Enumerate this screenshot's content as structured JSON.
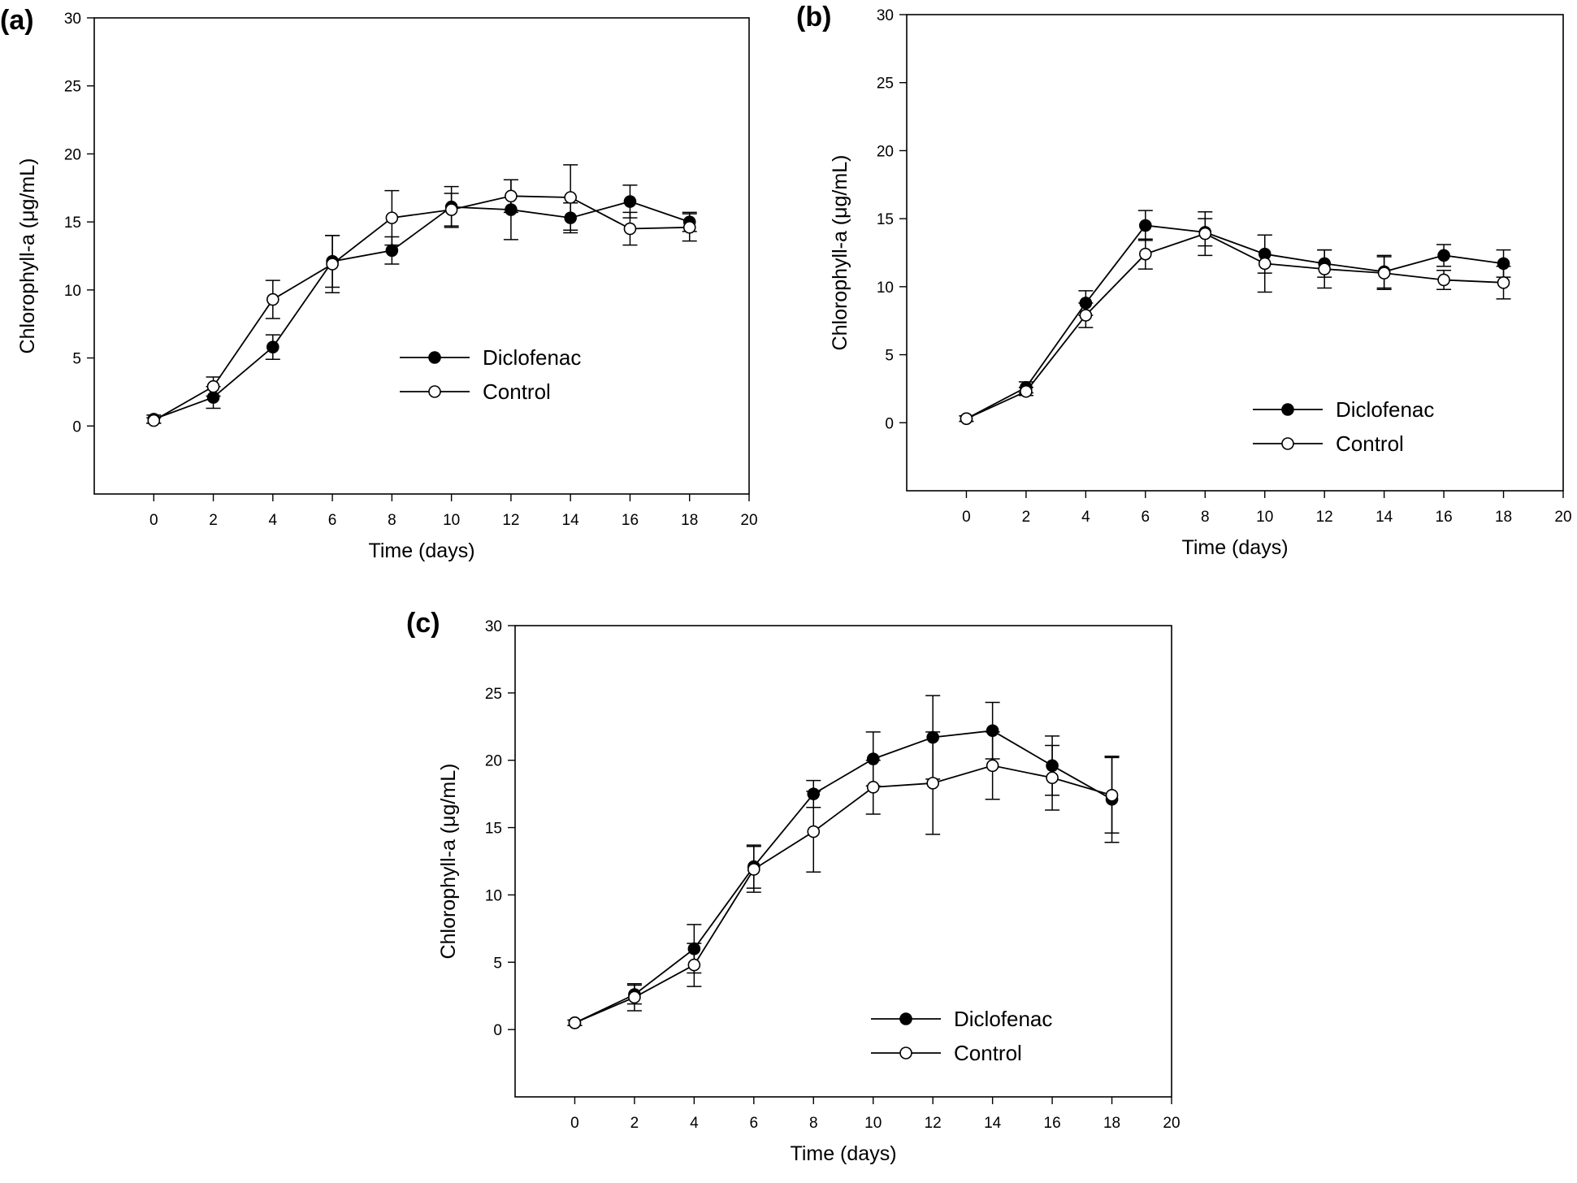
{
  "chart_data": [
    {
      "panel_label": "(a)",
      "type": "line",
      "xlabel": "Time (days)",
      "ylabel": "Chlorophyll-a (μg/mL)",
      "xlim": [
        -2,
        20
      ],
      "ylim": [
        -5,
        30
      ],
      "xticks": [
        0,
        2,
        4,
        6,
        8,
        10,
        12,
        14,
        16,
        18,
        20
      ],
      "yticks": [
        0,
        5,
        10,
        15,
        20,
        25,
        30
      ],
      "x": [
        0,
        2,
        4,
        6,
        8,
        10,
        12,
        14,
        16,
        18
      ],
      "legend_position": "center-right",
      "series": [
        {
          "name": "Diclofenac",
          "marker": "filled",
          "values": [
            0.5,
            2.1,
            5.8,
            12.1,
            12.9,
            16.1,
            15.9,
            15.3,
            16.5,
            15.0
          ],
          "errors": [
            0.3,
            0.8,
            0.9,
            1.9,
            1.0,
            1.5,
            2.2,
            1.1,
            1.2,
            0.7
          ]
        },
        {
          "name": "Control",
          "marker": "open",
          "values": [
            0.4,
            2.9,
            9.3,
            11.9,
            15.3,
            15.9,
            16.9,
            16.8,
            14.5,
            14.6
          ],
          "errors": [
            0.2,
            0.7,
            1.4,
            2.1,
            2.0,
            1.2,
            1.2,
            2.4,
            1.2,
            1.0
          ]
        }
      ]
    },
    {
      "panel_label": "(b)",
      "type": "line",
      "xlabel": "Time (days)",
      "ylabel": "Chlorophyll-a (μg/mL)",
      "xlim": [
        -2,
        20
      ],
      "ylim": [
        -5,
        30
      ],
      "xticks": [
        0,
        2,
        4,
        6,
        8,
        10,
        12,
        14,
        16,
        18,
        20
      ],
      "yticks": [
        0,
        5,
        10,
        15,
        20,
        25,
        30
      ],
      "x": [
        0,
        2,
        4,
        6,
        8,
        10,
        12,
        14,
        16,
        18
      ],
      "legend_position": "lower-right",
      "series": [
        {
          "name": "Diclofenac",
          "marker": "filled",
          "values": [
            0.3,
            2.6,
            8.8,
            14.5,
            14.0,
            12.4,
            11.7,
            11.1,
            12.3,
            11.7
          ],
          "errors": [
            0.2,
            0.4,
            0.9,
            1.1,
            1.0,
            1.4,
            1.0,
            1.2,
            0.8,
            1.0
          ]
        },
        {
          "name": "Control",
          "marker": "open",
          "values": [
            0.3,
            2.3,
            7.9,
            12.4,
            13.9,
            11.7,
            11.3,
            11.0,
            10.5,
            10.3
          ],
          "errors": [
            0.2,
            0.3,
            0.9,
            1.1,
            1.6,
            2.1,
            1.4,
            1.2,
            0.7,
            1.2
          ]
        }
      ]
    },
    {
      "panel_label": "(c)",
      "type": "line",
      "xlabel": "Time (days)",
      "ylabel": "Chlorophyll-a (μg/mL)",
      "xlim": [
        -2,
        20
      ],
      "ylim": [
        -5,
        30
      ],
      "xticks": [
        0,
        2,
        4,
        6,
        8,
        10,
        12,
        14,
        16,
        18,
        20
      ],
      "yticks": [
        0,
        5,
        10,
        15,
        20,
        25,
        30
      ],
      "x": [
        0,
        2,
        4,
        6,
        8,
        10,
        12,
        14,
        16,
        18
      ],
      "legend_position": "lower-right",
      "series": [
        {
          "name": "Diclofenac",
          "marker": "filled",
          "values": [
            0.5,
            2.6,
            6.0,
            12.1,
            17.5,
            20.1,
            21.7,
            22.2,
            19.6,
            17.1
          ],
          "errors": [
            0.2,
            0.7,
            1.8,
            1.6,
            1.0,
            2.0,
            3.1,
            2.1,
            2.2,
            3.2
          ]
        },
        {
          "name": "Control",
          "marker": "open",
          "values": [
            0.5,
            2.4,
            4.8,
            11.9,
            14.7,
            18.0,
            18.3,
            19.6,
            18.7,
            17.4
          ],
          "errors": [
            0.2,
            1.0,
            1.6,
            1.7,
            3.0,
            2.0,
            3.8,
            2.5,
            2.4,
            2.8
          ]
        }
      ]
    }
  ]
}
